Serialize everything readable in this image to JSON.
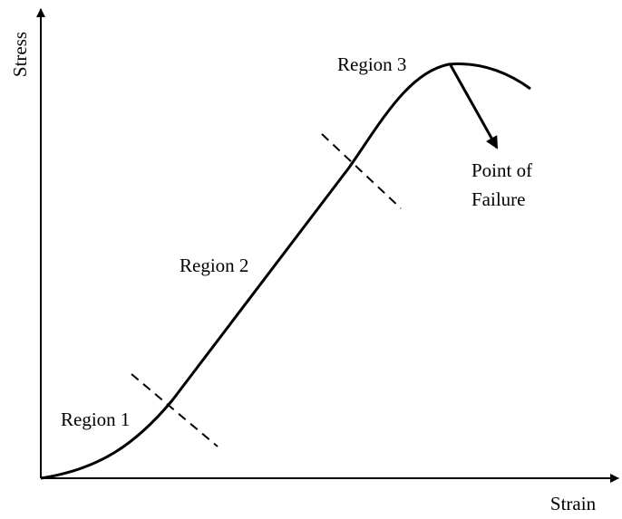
{
  "axes": {
    "y_label": "Stress",
    "x_label": "Strain"
  },
  "regions": [
    {
      "label": "Region 1"
    },
    {
      "label": "Region 2"
    },
    {
      "label": "Region 3"
    }
  ],
  "annotation": {
    "lines": [
      "Point of",
      "Failure"
    ]
  }
}
